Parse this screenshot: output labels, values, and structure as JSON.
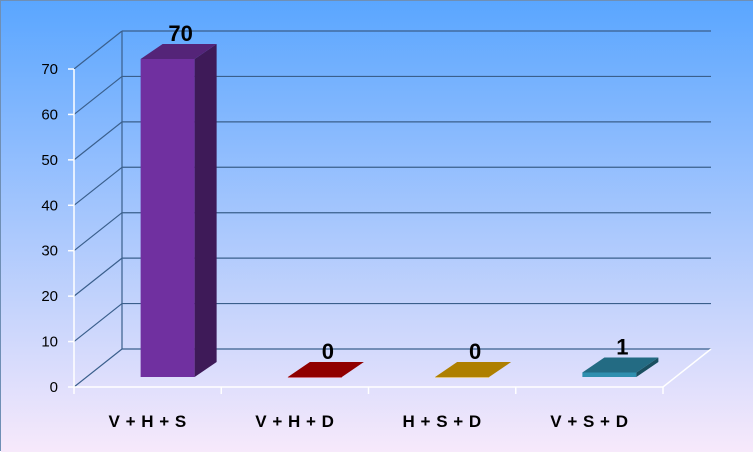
{
  "chart_data": {
    "type": "bar",
    "style": "3d-column",
    "categories": [
      "V + H + S",
      "V + H + D",
      "H + S + D",
      "V + S + D"
    ],
    "values": [
      70,
      0,
      0,
      1
    ],
    "data_labels": [
      "70",
      "0",
      "0",
      "1"
    ],
    "bar_colors": [
      "#7030A0",
      "#C00000",
      "#E8A900",
      "#2F8FAF"
    ],
    "ylim": [
      0,
      70
    ],
    "ytick_step": 10,
    "title": "",
    "xlabel": "",
    "ylabel": "",
    "grid": true,
    "legend": "none"
  },
  "colors": {
    "background_top": "#5aa6ff",
    "background_bottom": "#f7e9fb",
    "gridline": "#3a5f8c"
  }
}
